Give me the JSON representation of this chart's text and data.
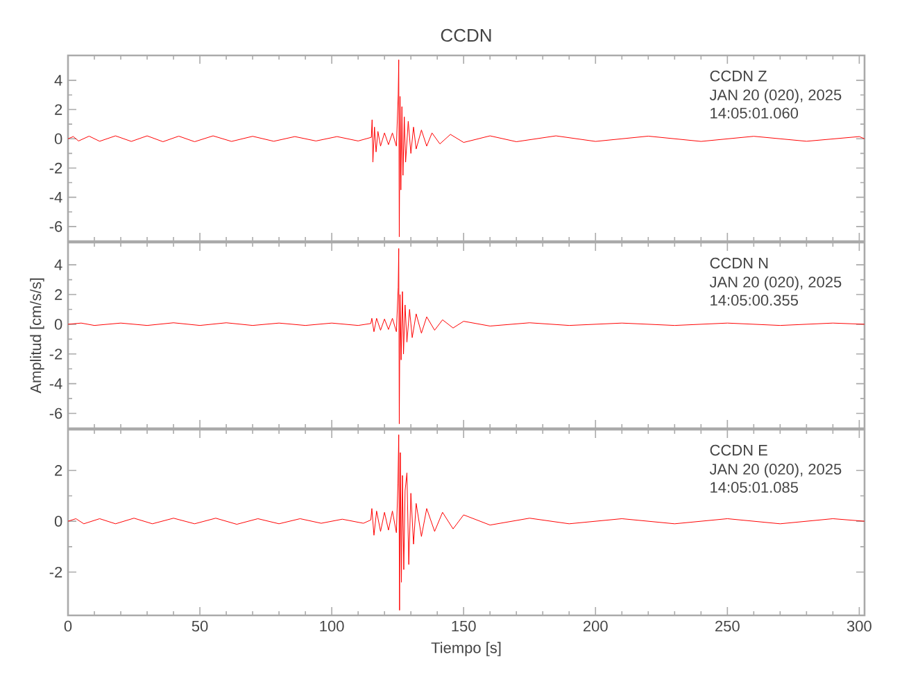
{
  "chart_data": [
    {
      "type": "line",
      "title": "CCDN",
      "xlim": [
        0,
        302
      ],
      "xticks": [
        0,
        50,
        100,
        150,
        200,
        250,
        300
      ],
      "ylim": [
        -7,
        5.7
      ],
      "yticks": [
        -6,
        -4,
        -2,
        0,
        2,
        4
      ],
      "tick_labels": "y",
      "annotations": [
        "CCDN   Z",
        "JAN 20 (020), 2025",
        "14:05:01.060"
      ],
      "series": [
        {
          "color": "#ff0000",
          "x": [
            0,
            2,
            4,
            8,
            12,
            18,
            24,
            30,
            36,
            42,
            48,
            55,
            62,
            70,
            78,
            86,
            94,
            102,
            110,
            115,
            115.3,
            115.6,
            116.2,
            116.8,
            117.5,
            118.5,
            120,
            121.5,
            123,
            124.5,
            125.2,
            125.4,
            125.6,
            125.9,
            126.2,
            126.6,
            127,
            127.5,
            128,
            129,
            130,
            131,
            132,
            134,
            136,
            138,
            141,
            145,
            150,
            160,
            170,
            185,
            200,
            220,
            240,
            260,
            280,
            300,
            302
          ],
          "values": [
            0,
            0.15,
            -0.15,
            0.18,
            -0.17,
            0.2,
            -0.18,
            0.2,
            -0.2,
            0.18,
            -0.2,
            0.2,
            -0.18,
            0.17,
            -0.17,
            0.15,
            -0.15,
            0.15,
            -0.15,
            0.1,
            1.3,
            -1.6,
            0.8,
            -0.9,
            0.5,
            -0.5,
            0.4,
            -0.4,
            0.4,
            -0.5,
            3.0,
            5.4,
            -6.7,
            2.9,
            -3.5,
            2.2,
            -2.5,
            1.5,
            -1.6,
            1.2,
            -1.0,
            0.8,
            -0.7,
            0.6,
            -0.5,
            0.4,
            -0.35,
            0.3,
            -0.25,
            0.2,
            -0.2,
            0.2,
            -0.18,
            0.18,
            -0.18,
            0.17,
            -0.17,
            0.15,
            0
          ]
        }
      ]
    },
    {
      "type": "line",
      "ylabel": "Amplitud [cm/s/s]",
      "xlim": [
        0,
        302
      ],
      "xticks": [
        0,
        50,
        100,
        150,
        200,
        250,
        300
      ],
      "ylim": [
        -7,
        5.5
      ],
      "yticks": [
        -6,
        -4,
        -2,
        0,
        2,
        4
      ],
      "tick_labels": "y",
      "annotations": [
        "CCDN   N",
        "JAN 20 (020), 2025",
        "14:05:00.355"
      ],
      "series": [
        {
          "color": "#ff0000",
          "x": [
            0,
            5,
            10,
            20,
            30,
            40,
            50,
            60,
            70,
            80,
            90,
            100,
            110,
            114.8,
            115.2,
            116,
            117,
            118.5,
            120,
            121.5,
            123,
            124.5,
            125.2,
            125.4,
            125.6,
            125.9,
            126.3,
            126.8,
            127.2,
            127.8,
            128.5,
            129.5,
            130.5,
            132,
            134,
            136,
            139,
            142,
            146,
            150,
            160,
            175,
            190,
            210,
            230,
            250,
            270,
            290,
            302
          ],
          "values": [
            0,
            0.08,
            -0.08,
            0.08,
            -0.08,
            0.1,
            -0.08,
            0.1,
            -0.08,
            0.08,
            -0.08,
            0.08,
            -0.08,
            0.05,
            0.4,
            -0.5,
            0.4,
            -0.4,
            0.35,
            -0.35,
            0.4,
            -0.5,
            2.5,
            5.1,
            -6.7,
            2.0,
            -2.4,
            2.2,
            -2.0,
            1.3,
            -1.2,
            1.0,
            -0.9,
            0.7,
            -0.6,
            0.5,
            -0.4,
            0.3,
            -0.25,
            0.2,
            -0.12,
            0.1,
            -0.08,
            0.08,
            -0.08,
            0.08,
            -0.08,
            0.08,
            0
          ]
        }
      ]
    },
    {
      "type": "line",
      "xlabel": "Tiempo [s]",
      "xlim": [
        0,
        302
      ],
      "xticks": [
        0,
        50,
        100,
        150,
        200,
        250,
        300
      ],
      "ylim": [
        -3.7,
        3.6
      ],
      "yticks": [
        -2,
        0,
        2
      ],
      "annotations": [
        "CCDN   E",
        "JAN 20 (020), 2025",
        "14:05:01.085"
      ],
      "series": [
        {
          "color": "#ff0000",
          "x": [
            0,
            3,
            6,
            12,
            18,
            25,
            32,
            40,
            48,
            56,
            64,
            72,
            80,
            88,
            96,
            104,
            112,
            114.8,
            115.2,
            116,
            117,
            118.5,
            120,
            121.5,
            123,
            124.5,
            125.1,
            125.4,
            125.7,
            126,
            126.4,
            126.8,
            127.3,
            127.8,
            128.5,
            129.2,
            130,
            131,
            132,
            134,
            136,
            139,
            142,
            146,
            150,
            160,
            175,
            190,
            210,
            230,
            250,
            270,
            290,
            302
          ],
          "values": [
            0,
            0.1,
            -0.1,
            0.1,
            -0.1,
            0.12,
            -0.1,
            0.12,
            -0.1,
            0.12,
            -0.12,
            0.1,
            -0.1,
            0.1,
            -0.08,
            0.08,
            -0.08,
            0.05,
            0.5,
            -0.55,
            0.4,
            -0.4,
            0.35,
            -0.35,
            0.4,
            -0.45,
            1.5,
            3.4,
            -3.5,
            2.7,
            -2.4,
            1.8,
            -1.9,
            1.2,
            1.9,
            -1.7,
            1.1,
            -0.9,
            0.7,
            -0.6,
            0.5,
            -0.4,
            0.35,
            -0.3,
            0.25,
            -0.15,
            0.12,
            -0.1,
            0.1,
            -0.1,
            0.1,
            -0.1,
            0.1,
            0
          ]
        }
      ]
    }
  ]
}
